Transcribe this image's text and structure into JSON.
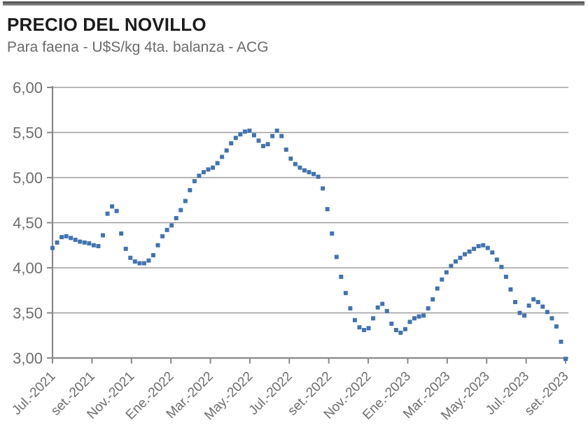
{
  "header": {
    "title": "PRECIO DEL NOVILLO",
    "subtitle": "Para faena - U$S/kg 4ta. balanza - ACG"
  },
  "chart_data": {
    "type": "scatter",
    "title": "PRECIO DEL NOVILLO",
    "subtitle": "Para faena - U$S/kg 4ta. balanza - ACG",
    "series_name": "Precio del novillo para faena (U$S/kg, 4ta. balanza, ACG)",
    "x_tick_labels": [
      "Jul.-2021",
      "set.-2021",
      "Nov.-2021",
      "Ene.-2022",
      "Mar.-2022",
      "May.-2022",
      "Jul.-2022",
      "set.-2022",
      "Nov.-2022",
      "Ene.-2023",
      "Mar.-2023",
      "May.-2023",
      "Jul.-2023",
      "set.-2023"
    ],
    "y_tick_labels": [
      "6,00",
      "5,50",
      "5,00",
      "4,50",
      "4,00",
      "3,50",
      "3,00"
    ],
    "y_tick_values": [
      6.0,
      5.5,
      5.0,
      4.5,
      4.0,
      3.5,
      3.0
    ],
    "ylim": [
      3.0,
      6.0
    ],
    "grid": true,
    "legend": "none",
    "marker": "square",
    "x_note": "weekly observations, evenly spaced from Jul.-2021 to set.-2023",
    "values": [
      4.22,
      4.28,
      4.34,
      4.35,
      4.33,
      4.31,
      4.29,
      4.28,
      4.27,
      4.25,
      4.24,
      4.36,
      4.6,
      4.68,
      4.63,
      4.38,
      4.21,
      4.11,
      4.07,
      4.05,
      4.05,
      4.08,
      4.14,
      4.25,
      4.35,
      4.42,
      4.47,
      4.55,
      4.64,
      4.74,
      4.86,
      4.96,
      5.02,
      5.06,
      5.09,
      5.11,
      5.16,
      5.23,
      5.3,
      5.38,
      5.44,
      5.48,
      5.51,
      5.52,
      5.47,
      5.41,
      5.35,
      5.37,
      5.46,
      5.52,
      5.46,
      5.31,
      5.21,
      5.15,
      5.11,
      5.08,
      5.06,
      5.04,
      5.01,
      4.88,
      4.65,
      4.38,
      4.12,
      3.9,
      3.72,
      3.55,
      3.42,
      3.34,
      3.31,
      3.33,
      3.44,
      3.56,
      3.6,
      3.52,
      3.38,
      3.31,
      3.28,
      3.32,
      3.4,
      3.44,
      3.46,
      3.47,
      3.55,
      3.65,
      3.77,
      3.87,
      3.95,
      4.02,
      4.07,
      4.11,
      4.15,
      4.18,
      4.21,
      4.24,
      4.25,
      4.22,
      4.17,
      4.09,
      4.01,
      3.9,
      3.76,
      3.62,
      3.5,
      3.47,
      3.58,
      3.65,
      3.62,
      3.57,
      3.51,
      3.44,
      3.35,
      3.18,
      2.99
    ],
    "colors": {
      "marker": "#4173b2",
      "grid": "#9d9d9d",
      "axis": "#898989",
      "tick_label": "#6e6e6e",
      "title": "#1c1c1c",
      "subtitle": "#6b6b6b",
      "top_bar": "#6f6f6f"
    }
  }
}
